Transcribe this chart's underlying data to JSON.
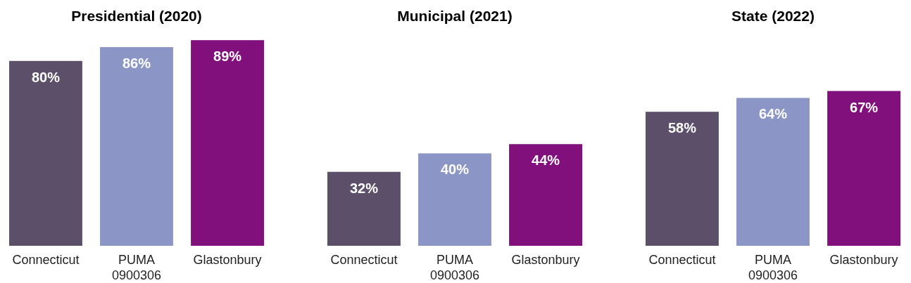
{
  "chart_data": [
    {
      "type": "bar",
      "title": "Presidential (2020)",
      "categories": [
        "Connecticut",
        "PUMA 0900306",
        "Glastonbury"
      ],
      "values": [
        80,
        86,
        89
      ],
      "value_labels": [
        "80%",
        "86%",
        "89%"
      ],
      "colors": [
        "#5c4f6a",
        "#8c96c6",
        "#810f7c"
      ]
    },
    {
      "type": "bar",
      "title": "Municipal (2021)",
      "categories": [
        "Connecticut",
        "PUMA 0900306",
        "Glastonbury"
      ],
      "values": [
        32,
        40,
        44
      ],
      "value_labels": [
        "32%",
        "40%",
        "44%"
      ],
      "colors": [
        "#5c4f6a",
        "#8c96c6",
        "#810f7c"
      ]
    },
    {
      "type": "bar",
      "title": "State (2022)",
      "categories": [
        "Connecticut",
        "PUMA 0900306",
        "Glastonbury"
      ],
      "values": [
        58,
        64,
        67
      ],
      "value_labels": [
        "58%",
        "64%",
        "67%"
      ],
      "colors": [
        "#5c4f6a",
        "#8c96c6",
        "#810f7c"
      ]
    }
  ]
}
